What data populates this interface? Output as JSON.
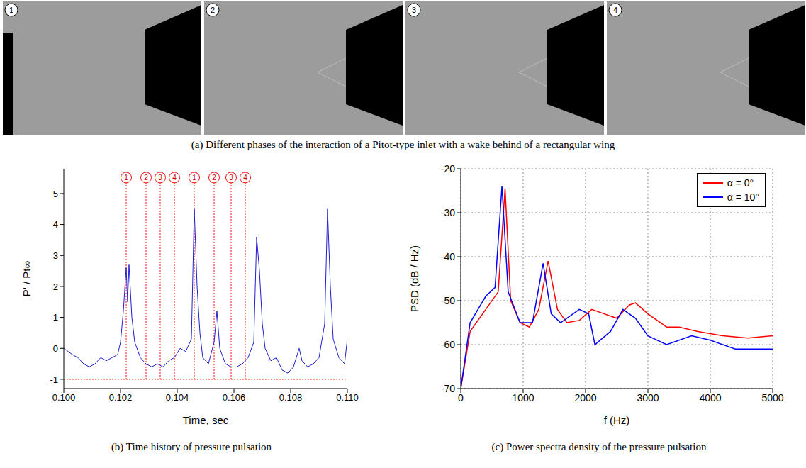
{
  "panel_a": {
    "caption": "(a) Different phases of the interaction of a Pitot-type inlet with a wake behind of a rectangular wing",
    "frames": [
      "1",
      "2",
      "3",
      "4"
    ]
  },
  "chart_data": [
    {
      "type": "line",
      "caption": "(b) Time history of pressure pulsation",
      "x_label": "Time, sec",
      "y_label": "P' / Pt∞",
      "xlim": [
        0.1,
        0.11
      ],
      "xticks": [
        {
          "value": 0.1,
          "label": "0.100"
        },
        {
          "value": 0.102,
          "label": "0.102"
        },
        {
          "value": 0.104,
          "label": "0.104"
        },
        {
          "value": 0.106,
          "label": "0.106"
        },
        {
          "value": 0.108,
          "label": "0.108"
        },
        {
          "value": 0.11,
          "label": "0.110"
        }
      ],
      "ylim": [
        -1.3,
        5.8
      ],
      "yticks": [
        -1,
        0,
        1,
        2,
        3,
        4,
        5
      ],
      "grid": false,
      "hline": -1,
      "annotations": [
        {
          "x": 0.1022,
          "label": "1"
        },
        {
          "x": 0.1029,
          "label": "2"
        },
        {
          "x": 0.1034,
          "label": "3"
        },
        {
          "x": 0.1039,
          "label": "4"
        },
        {
          "x": 0.1046,
          "label": "1"
        },
        {
          "x": 0.1053,
          "label": "2"
        },
        {
          "x": 0.1059,
          "label": "3"
        },
        {
          "x": 0.1064,
          "label": "4"
        }
      ],
      "series": [
        {
          "name": "P' / Pt∞",
          "color": "#1f1fd0",
          "x": [
            0.1,
            0.1003,
            0.1005,
            0.1007,
            0.1009,
            0.1011,
            0.1013,
            0.1015,
            0.1017,
            0.1019,
            0.102,
            0.1021,
            0.1022,
            0.10225,
            0.1023,
            0.1024,
            0.1025,
            0.1027,
            0.1029,
            0.1031,
            0.1033,
            0.1035,
            0.1037,
            0.1039,
            0.1041,
            0.1043,
            0.1045,
            0.1046,
            0.1047,
            0.1048,
            0.1049,
            0.1051,
            0.1053,
            0.1054,
            0.1055,
            0.1057,
            0.1059,
            0.1061,
            0.1063,
            0.1065,
            0.1067,
            0.1068,
            0.1069,
            0.107,
            0.1071,
            0.1073,
            0.1075,
            0.1077,
            0.1079,
            0.1081,
            0.1083,
            0.1084,
            0.1086,
            0.1088,
            0.109,
            0.1092,
            0.1093,
            0.1094,
            0.1095,
            0.1097,
            0.1099,
            0.11
          ],
          "values": [
            0.0,
            -0.2,
            -0.3,
            -0.5,
            -0.6,
            -0.5,
            -0.3,
            -0.4,
            -0.3,
            -0.2,
            0.2,
            1.2,
            2.6,
            1.5,
            2.7,
            1.0,
            0.2,
            -0.3,
            -0.5,
            -0.6,
            -0.5,
            -0.6,
            -0.4,
            -0.3,
            0.0,
            -0.1,
            0.3,
            4.5,
            2.0,
            0.5,
            -0.3,
            -0.5,
            0.2,
            1.2,
            0.0,
            -0.5,
            -0.6,
            -0.6,
            -0.5,
            -0.3,
            0.2,
            3.6,
            2.5,
            0.8,
            0.0,
            -0.4,
            -0.3,
            -0.7,
            -0.8,
            -0.6,
            0.0,
            -0.4,
            -0.6,
            -0.5,
            -0.3,
            0.8,
            4.5,
            2.0,
            0.3,
            -0.3,
            -0.5,
            0.3
          ]
        }
      ]
    },
    {
      "type": "line",
      "caption": "(c) Power spectra density of the pressure pulsation",
      "x_label": "f (Hz)",
      "y_label": "PSD (dB / Hz)",
      "xlim": [
        0,
        5000
      ],
      "xticks": [
        0,
        1000,
        2000,
        3000,
        4000,
        5000
      ],
      "ylim": [
        -70,
        -20
      ],
      "yticks": [
        -70,
        -60,
        -50,
        -40,
        -30,
        -20
      ],
      "grid": true,
      "legend": "top-right",
      "series": [
        {
          "name": "α = 0°",
          "color": "#ff0000",
          "x": [
            0,
            150,
            400,
            600,
            710,
            800,
            950,
            1100,
            1250,
            1400,
            1550,
            1700,
            1900,
            2100,
            2300,
            2500,
            2700,
            2800,
            3000,
            3300,
            3500,
            3800,
            4200,
            4600,
            5000
          ],
          "values": [
            -70,
            -57,
            -52,
            -48,
            -24.5,
            -50,
            -55,
            -56,
            -52,
            -41,
            -52,
            -55,
            -54.5,
            -52,
            -53,
            -54,
            -51,
            -50.5,
            -53,
            -56,
            -56,
            -57,
            -58,
            -58.5,
            -58
          ]
        },
        {
          "name": "α = 10°",
          "color": "#0000ff",
          "x": [
            0,
            150,
            400,
            550,
            660,
            760,
            950,
            1150,
            1320,
            1450,
            1600,
            1900,
            2050,
            2150,
            2400,
            2600,
            2800,
            3000,
            3300,
            3700,
            4000,
            4400,
            5000
          ],
          "values": [
            -70,
            -55,
            -49,
            -47,
            -24,
            -48,
            -55,
            -55,
            -41.5,
            -53,
            -55,
            -52,
            -53,
            -60,
            -57,
            -52,
            -54,
            -58,
            -60,
            -58,
            -59,
            -61,
            -61
          ]
        }
      ]
    }
  ]
}
